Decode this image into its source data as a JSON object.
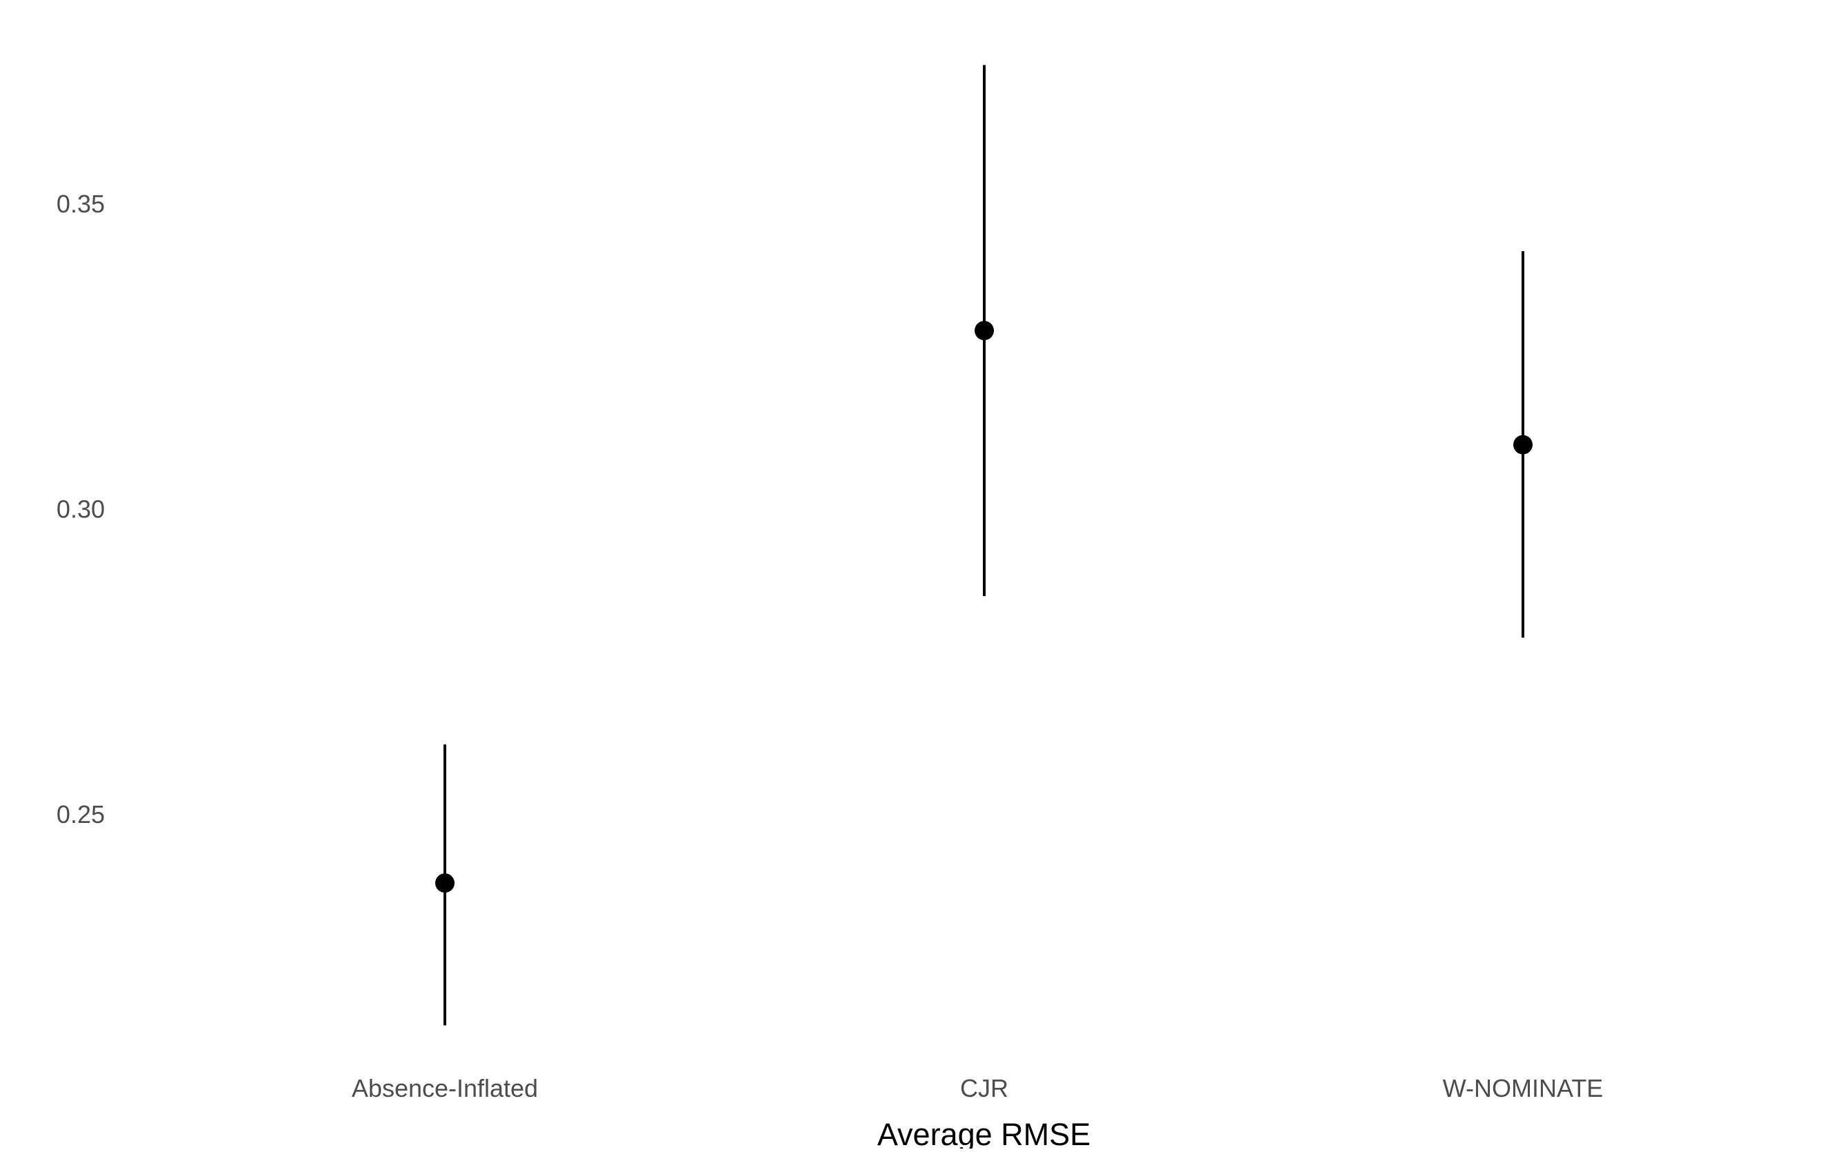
{
  "chart_data": {
    "type": "scatter",
    "subtype": "point-range",
    "title": "",
    "xlabel": "Average RMSE",
    "ylabel": "",
    "categories": [
      "Absence-Inflated",
      "CJR",
      "W-NOMINATE"
    ],
    "series": [
      {
        "points": [
          {
            "category": "Absence-Inflated",
            "estimate": 0.2388,
            "lower": 0.2155,
            "upper": 0.2615
          },
          {
            "category": "CJR",
            "estimate": 0.3293,
            "lower": 0.2858,
            "upper": 0.3728
          },
          {
            "category": "W-NOMINATE",
            "estimate": 0.3106,
            "lower": 0.279,
            "upper": 0.3423
          }
        ]
      }
    ],
    "y_ticks": [
      0.25,
      0.3,
      0.35
    ],
    "y_tick_labels": [
      "0.25",
      "0.30",
      "0.35"
    ],
    "ylim": [
      0.2125,
      0.376
    ],
    "grid": false,
    "legend": "none",
    "colors": {
      "point": "#000000",
      "errorbar": "#000000",
      "tick_text": "#4d4d4d",
      "axis_title": "#000000",
      "background": "#ffffff"
    }
  }
}
